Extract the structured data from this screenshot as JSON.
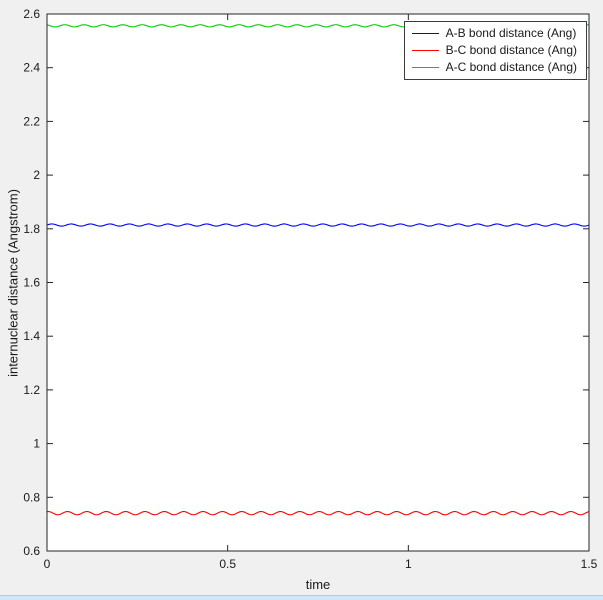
{
  "window": {
    "background": "#f0f0f0",
    "bottom_edge_color": "#cfe6f7"
  },
  "figure": {
    "plot_background": "#ffffff",
    "axis_color": "#262626",
    "text_color": "#1a1a1a"
  },
  "chart_data": {
    "type": "line",
    "title": "",
    "xlabel": "time",
    "ylabel": "internuclear distance (Angstrom)",
    "xlim": [
      0,
      1.5
    ],
    "ylim": [
      0.6,
      2.6
    ],
    "xticks": [
      0,
      0.5,
      1,
      1.5
    ],
    "xtick_labels": [
      "0",
      "0.5",
      "1",
      "1.5"
    ],
    "yticks": [
      0.6,
      0.8,
      1,
      1.2,
      1.4,
      1.6,
      1.8,
      2,
      2.2,
      2.4,
      2.6
    ],
    "ytick_labels": [
      "0.6",
      "0.8",
      "1",
      "1.2",
      "1.4",
      "1.6",
      "1.8",
      "2",
      "2.2",
      "2.4",
      "2.6"
    ],
    "grid": false,
    "legend_position": "top-right",
    "series": [
      {
        "name": "A-B bond distance (Ang)",
        "color": "#0000ff",
        "mean": 1.814,
        "amplitude": 0.004,
        "cycles": 28,
        "phase": 0
      },
      {
        "name": "B-C bond distance (Ang)",
        "color": "#ff0000",
        "mean": 0.741,
        "amplitude": 0.006,
        "cycles": 28,
        "phase": 1.2
      },
      {
        "name": "A-C bond distance (Ang)",
        "color": "#00cc00",
        "mean": 2.556,
        "amplitude": 0.004,
        "cycles": 28,
        "phase": 2.1
      }
    ]
  }
}
